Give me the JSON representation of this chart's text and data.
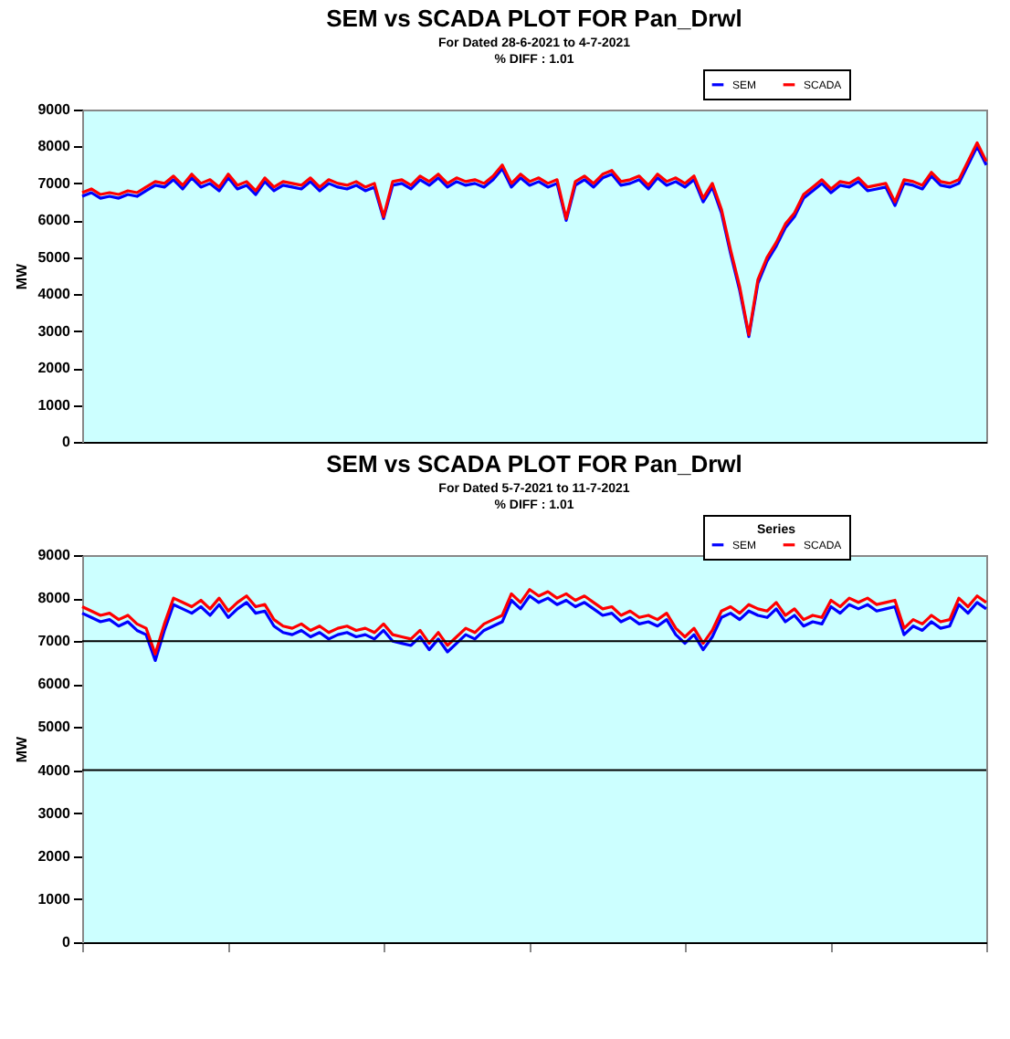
{
  "chart_data": [
    {
      "type": "line",
      "title": "SEM vs SCADA PLOT FOR Pan_Drwl",
      "subtitle": "For Dated 28-6-2021 to 4-7-2021",
      "annotations": [
        "% DIFF : 1.01"
      ],
      "ylabel": "MW",
      "ylim": [
        0,
        9000
      ],
      "yticks": [
        0,
        1000,
        2000,
        3000,
        4000,
        5000,
        6000,
        7000,
        8000,
        9000
      ],
      "grid": false,
      "legend": "top right",
      "tick_labels": "y",
      "marker": "none",
      "categories": [
        null,
        null,
        null,
        null,
        null,
        null,
        null,
        null,
        null,
        null,
        null,
        null,
        null,
        null,
        null,
        null,
        null,
        null,
        null,
        null,
        null,
        null,
        null,
        null,
        null,
        null,
        null,
        null,
        null,
        null,
        null,
        null,
        null,
        null,
        null,
        null,
        null,
        null,
        null,
        null,
        null,
        null,
        null,
        null,
        null,
        null,
        null,
        null,
        null,
        null,
        null,
        null,
        null,
        null,
        null,
        null,
        null,
        null,
        null,
        null,
        null,
        null,
        null,
        null,
        null,
        null,
        null,
        null,
        null,
        null,
        null,
        null,
        null,
        null,
        null,
        null,
        null,
        null,
        null,
        null,
        null,
        null,
        null,
        null,
        null,
        null,
        null,
        null,
        null,
        null,
        null,
        null,
        null,
        null,
        null,
        null,
        null,
        null,
        null,
        null
      ],
      "series": [
        {
          "name": "SEM",
          "color": "#0000ff",
          "values": [
            6650,
            6750,
            6600,
            6650,
            6600,
            6700,
            6650,
            6800,
            6950,
            6900,
            7100,
            6850,
            7150,
            6900,
            7000,
            6800,
            7150,
            6850,
            6950,
            6700,
            7050,
            6800,
            6950,
            6900,
            6850,
            7050,
            6800,
            7000,
            6900,
            6850,
            6950,
            6800,
            6900,
            6050,
            6950,
            7000,
            6850,
            7100,
            6950,
            7150,
            6900,
            7050,
            6950,
            7000,
            6900,
            7100,
            7400,
            6900,
            7150,
            6950,
            7050,
            6900,
            7000,
            6000,
            6950,
            7100,
            6900,
            7150,
            7250,
            6950,
            7000,
            7100,
            6850,
            7150,
            6950,
            7050,
            6900,
            7100,
            6500,
            6900,
            6200,
            5100,
            4100,
            2850,
            4300,
            4900,
            5300,
            5800,
            6100,
            6600,
            6800,
            7000,
            6750,
            6950,
            6900,
            7050,
            6800,
            6850,
            6900,
            6400,
            7000,
            6950,
            6850,
            7200,
            6950,
            6900,
            7000,
            7500,
            8000,
            7500
          ]
        },
        {
          "name": "SCADA",
          "color": "#ff0000",
          "values": [
            6750,
            6850,
            6700,
            6750,
            6700,
            6800,
            6750,
            6900,
            7050,
            7000,
            7200,
            6950,
            7250,
            7000,
            7100,
            6900,
            7250,
            6950,
            7050,
            6800,
            7150,
            6900,
            7050,
            7000,
            6950,
            7150,
            6900,
            7100,
            7000,
            6950,
            7050,
            6900,
            7000,
            6100,
            7050,
            7100,
            6950,
            7200,
            7050,
            7250,
            7000,
            7150,
            7050,
            7100,
            7000,
            7200,
            7500,
            7000,
            7250,
            7050,
            7150,
            7000,
            7100,
            6050,
            7050,
            7200,
            7000,
            7250,
            7350,
            7050,
            7100,
            7200,
            6950,
            7250,
            7050,
            7150,
            7000,
            7200,
            6600,
            7000,
            6300,
            5200,
            4200,
            2900,
            4400,
            5000,
            5400,
            5900,
            6200,
            6700,
            6900,
            7100,
            6850,
            7050,
            7000,
            7150,
            6900,
            6950,
            7000,
            6500,
            7100,
            7050,
            6950,
            7300,
            7050,
            7000,
            7100,
            7600,
            8100,
            7600
          ]
        }
      ]
    },
    {
      "type": "line",
      "title": "SEM vs SCADA PLOT FOR Pan_Drwl",
      "subtitle": "For Dated 5-7-2021 to 11-7-2021",
      "annotations": [
        "% DIFF : 1.01"
      ],
      "ylabel": "MW",
      "legend_title": "Series",
      "ylim": [
        0,
        9000
      ],
      "yticks": [
        0,
        1000,
        2000,
        3000,
        4000,
        5000,
        6000,
        7000,
        8000,
        9000
      ],
      "grid": false,
      "legend": "top right",
      "tick_labels": "y",
      "marker": "none",
      "ref_lines": [
        {
          "axis": "y",
          "value": 7000,
          "color": "#000000"
        },
        {
          "axis": "y",
          "value": 4000,
          "color": "#000000"
        }
      ],
      "categories": [
        null,
        null,
        null,
        null,
        null,
        null,
        null,
        null,
        null,
        null,
        null,
        null,
        null,
        null,
        null,
        null,
        null,
        null,
        null,
        null,
        null,
        null,
        null,
        null,
        null,
        null,
        null,
        null,
        null,
        null,
        null,
        null,
        null,
        null,
        null,
        null,
        null,
        null,
        null,
        null,
        null,
        null,
        null,
        null,
        null,
        null,
        null,
        null,
        null,
        null,
        null,
        null,
        null,
        null,
        null,
        null,
        null,
        null,
        null,
        null,
        null,
        null,
        null,
        null,
        null,
        null,
        null,
        null,
        null,
        null,
        null,
        null,
        null,
        null,
        null,
        null,
        null,
        null,
        null,
        null,
        null,
        null,
        null,
        null,
        null,
        null,
        null,
        null,
        null,
        null,
        null,
        null,
        null,
        null,
        null,
        null,
        null,
        null,
        null,
        null
      ],
      "series": [
        {
          "name": "SEM",
          "color": "#0000ff",
          "values": [
            7650,
            7550,
            7450,
            7500,
            7350,
            7450,
            7250,
            7150,
            6550,
            7250,
            7850,
            7750,
            7650,
            7800,
            7600,
            7850,
            7550,
            7750,
            7900,
            7650,
            7700,
            7350,
            7200,
            7150,
            7250,
            7100,
            7200,
            7050,
            7150,
            7200,
            7100,
            7150,
            7050,
            7250,
            7000,
            6950,
            6900,
            7100,
            6800,
            7050,
            6750,
            6950,
            7150,
            7050,
            7250,
            7350,
            7450,
            7950,
            7750,
            8050,
            7900,
            8000,
            7850,
            7950,
            7800,
            7900,
            7750,
            7600,
            7650,
            7450,
            7550,
            7400,
            7450,
            7350,
            7500,
            7150,
            6950,
            7150,
            6800,
            7100,
            7550,
            7650,
            7500,
            7700,
            7600,
            7550,
            7750,
            7450,
            7600,
            7350,
            7450,
            7400,
            7800,
            7650,
            7850,
            7750,
            7850,
            7700,
            7750,
            7800,
            7150,
            7350,
            7250,
            7450,
            7300,
            7350,
            7850,
            7650,
            7900,
            7750
          ]
        },
        {
          "name": "SCADA",
          "color": "#ff0000",
          "values": [
            7800,
            7700,
            7600,
            7650,
            7500,
            7600,
            7400,
            7300,
            6700,
            7400,
            8000,
            7900,
            7800,
            7950,
            7750,
            8000,
            7700,
            7900,
            8050,
            7800,
            7850,
            7500,
            7350,
            7300,
            7400,
            7250,
            7350,
            7200,
            7300,
            7350,
            7250,
            7300,
            7200,
            7400,
            7150,
            7100,
            7050,
            7250,
            6950,
            7200,
            6900,
            7100,
            7300,
            7200,
            7400,
            7500,
            7600,
            8100,
            7900,
            8200,
            8050,
            8150,
            8000,
            8100,
            7950,
            8050,
            7900,
            7750,
            7800,
            7600,
            7700,
            7550,
            7600,
            7500,
            7650,
            7300,
            7100,
            7300,
            6950,
            7250,
            7700,
            7800,
            7650,
            7850,
            7750,
            7700,
            7900,
            7600,
            7750,
            7500,
            7600,
            7550,
            7950,
            7800,
            8000,
            7900,
            8000,
            7850,
            7900,
            7950,
            7300,
            7500,
            7400,
            7600,
            7450,
            7500,
            8000,
            7800,
            8050,
            7900
          ]
        }
      ]
    }
  ]
}
